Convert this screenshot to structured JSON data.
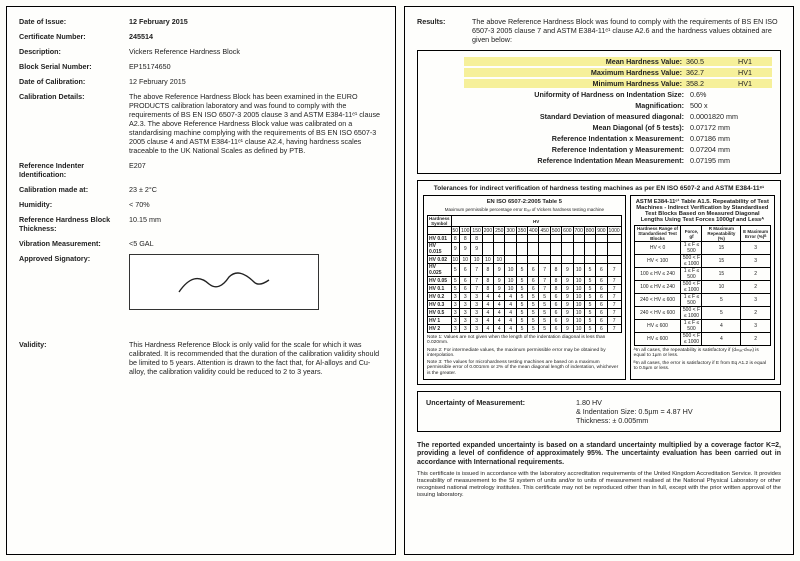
{
  "left": {
    "date_issue_label": "Date of Issue:",
    "date_issue": "12 February 2015",
    "cert_no_label": "Certificate Number:",
    "cert_no": "245514",
    "desc_label": "Description:",
    "desc": "Vickers Reference Hardness Block",
    "serial_label": "Block Serial Number:",
    "serial": "EP15174650",
    "date_cal_label": "Date of Calibration:",
    "date_cal": "12 February 2015",
    "cal_det_label": "Calibration Details:",
    "cal_det": "The above Reference Hardness Block has been examined in the EURO PRODUCTS calibration laboratory and was found to comply with the requirements of BS EN ISO 6507-3 2005 clause 3 and ASTM E384-11ᵉ¹ clause A2.3. The above Reference Hardness Block value was calibrated on a standardising machine complying with the requirements of BS EN ISO 6507-3 2005 clause 4 and ASTM E384-11ᵉ¹ clause A2.4, having hardness scales traceable to the UK National Scales as defined by PTB.",
    "ind_label": "Reference Indenter Identification:",
    "ind": "E207",
    "cal_at_label": "Calibration made at:",
    "cal_at": "23 ± 2°C",
    "hum_label": "Humidity:",
    "hum": "< 70%",
    "thick_label": "Reference Hardness Block Thickness:",
    "thick": "10.15 mm",
    "vib_label": "Vibration Measurement:",
    "vib": "<5 GAL",
    "sig_label": "Approved Signatory:",
    "valid_label": "Validity:",
    "valid": "This Hardness Reference Block is only valid for the scale for which it was calibrated. It is recommended that the duration of the calibration validity should be limited to 5 years. Attention is drawn to the fact that, for Al-alloys and Cu-alloy, the calibration validity could be reduced to 2 to 3 years."
  },
  "right": {
    "results_label": "Results:",
    "results_text": "The above Reference Hardness Block was found to comply with the requirements of BS EN ISO 6507-3 2005 clause 7 and ASTM E384-11ᵉ¹ clause A2.6 and the hardness values obtained are given below:",
    "mean_l": "Mean Hardness Value:",
    "mean_v": "360.5",
    "mean_u": "HV1",
    "max_l": "Maximum Hardness Value:",
    "max_v": "362.7",
    "max_u": "HV1",
    "min_l": "Minimum Hardness Value:",
    "min_v": "358.2",
    "min_u": "HV1",
    "unif_l": "Uniformity of Hardness on Indentation Size:",
    "unif_v": "0.6%",
    "mag_l": "Magnification:",
    "mag_v": "500 x",
    "sd_l": "Standard Deviation of measured diagonal:",
    "sd_v": "0.0001820 mm",
    "diag_l": "Mean Diagonal (of 5 tests):",
    "diag_v": "0.07172 mm",
    "rx_l": "Reference Indentation x Measurement:",
    "rx_v": "0.07186 mm",
    "ry_l": "Reference Indentation y Measurement:",
    "ry_v": "0.07204 mm",
    "rm_l": "Reference Indentation Mean Measurement:",
    "rm_v": "0.07195 mm",
    "tol_title": "Tolerances for indirect verification of hardness testing machines as per EN ISO 6507-2 and ASTM E384-11ᵉ¹",
    "tol_left_head": "EN ISO 6507-2:2005 Table 5",
    "tol_left_sub": "Maximum permissible percentage error Eᵣₑₗ of Vickers hardness testing machine",
    "tol_right_head": "ASTM E384-11ᵉ¹ Table A1.5. Repeatability of Test Machines - Indirect Verification by Standardised Test Blocks Based on Measured Diagonal Lengths Using Test Forces 1000gf and Lessᴬ",
    "left_rows": [
      "HV 0.01",
      "HV 0.015",
      "HV 0.02",
      "HV 0.025",
      "HV 0.05",
      "HV 0.1",
      "HV 0.2",
      "HV 0.3",
      "HV 0.5",
      "HV 1",
      "HV 2"
    ],
    "left_cols": [
      "50",
      "100",
      "150",
      "200",
      "250",
      "300",
      "350",
      "400",
      "450",
      "500",
      "600",
      "700",
      "800",
      "900",
      "1000"
    ],
    "right_rows": [
      [
        "HV < 0",
        "1 ≤ F ≤ 500",
        "15",
        "3"
      ],
      [
        "HV < 100",
        "500 < F ≤ 1000",
        "15",
        "3"
      ],
      [
        "100 ≤ HV ≤ 240",
        "1 ≤ F ≤ 500",
        "15",
        "2"
      ],
      [
        "100 ≤ HV ≤ 240",
        "500 < F ≤ 1000",
        "10",
        "2"
      ],
      [
        "240 < HV ≤ 600",
        "1 ≤ F ≤ 500",
        "5",
        "3"
      ],
      [
        "240 < HV ≤ 600",
        "500 < F ≤ 1000",
        "5",
        "2"
      ],
      [
        "HV ≤ 600",
        "1 ≤ F ≤ 500",
        "4",
        "3"
      ],
      [
        "HV ≤ 600",
        "500 < F ≤ 1000",
        "4",
        "2"
      ]
    ],
    "right_headers": [
      "Hardness Range of Standardised Test Blocks",
      "Force, gf",
      "R Maximum Repeatability (%)",
      "E Maximum Error (%)ᴮ"
    ],
    "note1": "Note 1: Values are not given when the length of the indentation diagonal is less than 0.020mm.",
    "note2": "Note 2: For intermediate values, the maximum permissible error may be obtained by interpolation.",
    "note3": "Note 3: The values for microhardness testing machines are based on a maximum permissible error of 0.001mm or 2% of the mean diagonal length of indentation, whichever is the greater.",
    "right_note_a": "ᴬIn all cases, the repeatability is satisfactory if (dₘₐₓ-dₘᵢₙ) is equal to 1µm or less.",
    "right_note_b": "ᴮIn all cases, the error is satisfactory if E from Eq A1.2 is equal to 0.5µm or less.",
    "uncert_label": "Uncertainty of Measurement:",
    "uncert_v1": "1.80 HV",
    "uncert_v2": "& Indentation Size: 0.5µm = 4.87 HV",
    "uncert_v3": "Thickness: ± 0.005mm",
    "foot_bold": "The reported expanded uncertainty is based on a standard uncertainty multiplied by a coverage factor K=2, providing a level of confidence of approximately 95%. The uncertainty evaluation has been carried out in accordance with International requirements.",
    "foot_small": "This certificate is issued in accordance with the laboratory accreditation requirements of the United Kingdom Accreditation Service. It provides traceability of measurement to the SI system of units and/or to units of measurement realised at the National Physical Laboratory or other recognised national metrology institutes. This certificate may not be reproduced other than in full, except with the prior written approval of the issuing laboratory."
  },
  "colors": {
    "highlight": "#f6f09a",
    "border": "#000000",
    "bg": "#fefefc"
  }
}
